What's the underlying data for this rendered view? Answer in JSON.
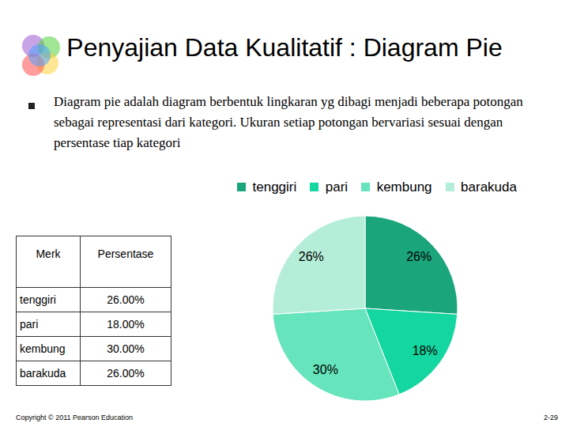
{
  "slide": {
    "title": "Penyajian Data Kualitatif : Diagram Pie",
    "text": "Diagram pie adalah diagram berbentuk lingkaran yg dibagi menjadi beberapa potongan sebagai representasi dari kategori. Ukuran setiap potongan bervariasi sesuai dengan persentase tiap kategori",
    "footer": "Copyright © 2011 Pearson Education",
    "page": "2-29"
  },
  "table": {
    "header": [
      "Merk",
      "Persentase"
    ],
    "rows": [
      [
        "tenggiri",
        "26.00%"
      ],
      [
        "pari",
        "18.00%"
      ],
      [
        "kembung",
        "30.00%"
      ],
      [
        "barakuda",
        "26.00%"
      ]
    ]
  },
  "chart_data": {
    "type": "pie",
    "categories": [
      "tenggiri",
      "pari",
      "kembung",
      "barakuda"
    ],
    "values": [
      26,
      18,
      30,
      26
    ],
    "value_labels": [
      "26%",
      "18%",
      "30%",
      "26%"
    ],
    "colors": [
      "#1ba57b",
      "#14d6a0",
      "#66e4bb",
      "#b5eed8"
    ],
    "data_labels": true,
    "legend": "top"
  }
}
